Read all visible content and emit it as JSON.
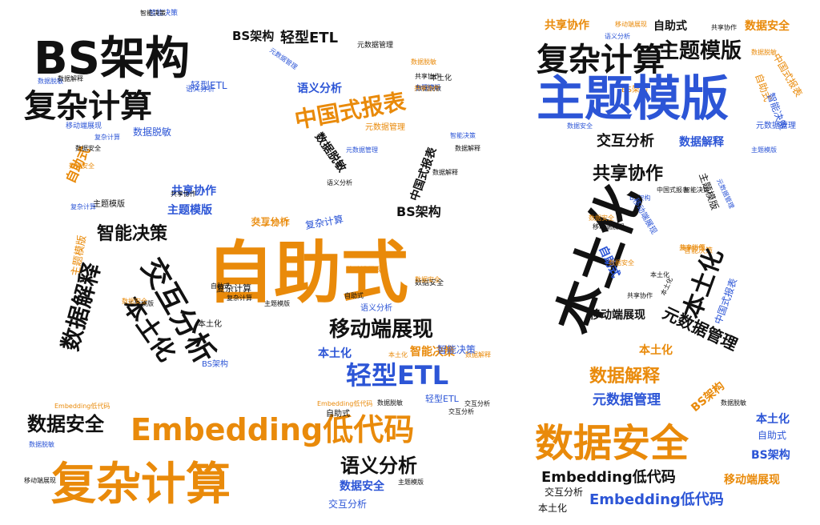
{
  "palette": {
    "black": "#111111",
    "orange": "#e98a0a",
    "blue": "#2c55d6"
  },
  "words": [
    {
      "text": "BS架构",
      "color": "black"
    },
    {
      "text": "复杂计算",
      "color": "black"
    },
    {
      "text": "智能决策",
      "color": "blue"
    },
    {
      "text": "数据脱敏",
      "color": "blue"
    },
    {
      "text": "BS架构",
      "color": "black"
    },
    {
      "text": "轻型ETL",
      "color": "black"
    },
    {
      "text": "元数据管理",
      "color": "black"
    },
    {
      "text": "中国式报表",
      "color": "orange"
    },
    {
      "text": "元数据管理",
      "color": "blue"
    },
    {
      "text": "语义分析",
      "color": "blue"
    },
    {
      "text": "自助式",
      "color": "orange"
    },
    {
      "text": "共享协作",
      "color": "blue"
    },
    {
      "text": "主题模版",
      "color": "blue"
    },
    {
      "text": "智能决策",
      "color": "black"
    },
    {
      "text": "主题模版",
      "color": "orange"
    },
    {
      "text": "交互分析",
      "color": "black"
    },
    {
      "text": "数据解释",
      "color": "black"
    },
    {
      "text": "本土化",
      "color": "black"
    },
    {
      "text": "自助式",
      "color": "orange"
    },
    {
      "text": "移动端展现",
      "color": "black"
    },
    {
      "text": "轻型ETL",
      "color": "blue"
    },
    {
      "text": "Embedding低代码",
      "color": "orange"
    },
    {
      "text": "数据安全",
      "color": "black"
    },
    {
      "text": "复杂计算",
      "color": "orange"
    },
    {
      "text": "语义分析",
      "color": "black"
    },
    {
      "text": "数据安全",
      "color": "blue"
    },
    {
      "text": "交互分析",
      "color": "blue"
    },
    {
      "text": "本土化",
      "color": "blue"
    },
    {
      "text": "智能决策",
      "color": "orange"
    },
    {
      "text": "数据解释",
      "color": "orange"
    },
    {
      "text": "复杂计算",
      "color": "black"
    },
    {
      "text": "交互分析",
      "color": "orange"
    },
    {
      "text": "复杂计算",
      "color": "blue"
    },
    {
      "text": "BS架构",
      "color": "black"
    },
    {
      "text": "数据安全",
      "color": "black"
    },
    {
      "text": "自助式",
      "color": "black"
    },
    {
      "text": "数据脱敏",
      "color": "black"
    },
    {
      "text": "轻型ETL",
      "color": "blue"
    },
    {
      "text": "交互分析",
      "color": "black"
    },
    {
      "text": "数据解释",
      "color": "black"
    },
    {
      "text": "本土化",
      "color": "black"
    },
    {
      "text": "元数据管理",
      "color": "orange"
    },
    {
      "text": "数据脱敏",
      "color": "black"
    },
    {
      "text": "智能决策",
      "color": "blue"
    },
    {
      "text": "数据解释",
      "color": "black"
    },
    {
      "text": "语义分析",
      "color": "black"
    },
    {
      "text": "中国式报表",
      "color": "black"
    },
    {
      "text": "复杂计算",
      "color": "blue"
    },
    {
      "text": "移动端展现",
      "color": "blue"
    },
    {
      "text": "语义分析",
      "color": "blue"
    },
    {
      "text": "Embedding低代码",
      "color": "orange"
    },
    {
      "text": "数据安全",
      "color": "black"
    },
    {
      "text": "元数据管理",
      "color": "blue"
    },
    {
      "text": "数据解释",
      "color": "black"
    },
    {
      "text": "智能决策",
      "color": "black"
    },
    {
      "text": "数据脱敏",
      "color": "orange"
    },
    {
      "text": "共享协作",
      "color": "black"
    },
    {
      "text": "复杂计算",
      "color": "blue"
    },
    {
      "text": "数据安全",
      "color": "orange"
    },
    {
      "text": "数据脱敏",
      "color": "black"
    },
    {
      "text": "主题模版",
      "color": "black"
    },
    {
      "text": "数据脱敏",
      "color": "blue"
    },
    {
      "text": "轻型ETL",
      "color": "blue"
    },
    {
      "text": "交互分析",
      "color": "black"
    },
    {
      "text": "数据安全",
      "color": "orange"
    },
    {
      "text": "主题模版",
      "color": "blue"
    },
    {
      "text": "移动端展现",
      "color": "black"
    },
    {
      "text": "共享协作",
      "color": "orange"
    },
    {
      "text": "移动端展现",
      "color": "orange"
    },
    {
      "text": "语义分析",
      "color": "blue"
    },
    {
      "text": "复杂计算",
      "color": "black"
    },
    {
      "text": "数据安全",
      "color": "orange"
    },
    {
      "text": "自助式",
      "color": "black"
    },
    {
      "text": "共享协作",
      "color": "black"
    },
    {
      "text": "自助式",
      "color": "black"
    },
    {
      "text": "主题模版",
      "color": "black"
    },
    {
      "text": "主题模版",
      "color": "black"
    },
    {
      "text": "BS架构",
      "color": "blue"
    },
    {
      "text": "本土化",
      "color": "black"
    },
    {
      "text": "数据脱敏",
      "color": "blue"
    },
    {
      "text": "本土化",
      "color": "orange"
    },
    {
      "text": "智能决策",
      "color": "blue"
    },
    {
      "text": "共享协作",
      "color": "orange"
    },
    {
      "text": "主题模版",
      "color": "black"
    },
    {
      "text": "共享协作",
      "color": "orange"
    },
    {
      "text": "移动端展现",
      "color": "orange"
    },
    {
      "text": "语义分析",
      "color": "blue"
    },
    {
      "text": "复杂计算",
      "color": "black"
    },
    {
      "text": "数据安全",
      "color": "orange"
    },
    {
      "text": "自助式",
      "color": "black"
    },
    {
      "text": "主题模版",
      "color": "black"
    },
    {
      "text": "共享协作",
      "color": "black"
    },
    {
      "text": "BS架构",
      "color": "orange"
    },
    {
      "text": "主题模版",
      "color": "blue"
    },
    {
      "text": "中国式报表",
      "color": "orange"
    },
    {
      "text": "交互分析",
      "color": "black"
    },
    {
      "text": "数据解释",
      "color": "blue"
    },
    {
      "text": "共享协作",
      "color": "black"
    },
    {
      "text": "主题模版",
      "color": "black"
    },
    {
      "text": "元数据管理",
      "color": "blue"
    },
    {
      "text": "中国式报表",
      "color": "black"
    },
    {
      "text": "智能决策",
      "color": "black"
    },
    {
      "text": "BS架构",
      "color": "blue"
    },
    {
      "text": "本土化",
      "color": "black"
    },
    {
      "text": "移动端展现",
      "color": "blue"
    },
    {
      "text": "数据安全",
      "color": "orange"
    },
    {
      "text": "移动端展现",
      "color": "black"
    },
    {
      "text": "数据脱敏",
      "color": "orange"
    },
    {
      "text": "智能决策",
      "color": "orange"
    },
    {
      "text": "共享协作",
      "color": "orange"
    },
    {
      "text": "自助式",
      "color": "blue"
    },
    {
      "text": "本土化",
      "color": "black"
    },
    {
      "text": "共享协作",
      "color": "black"
    },
    {
      "text": "中国式报表",
      "color": "blue"
    },
    {
      "text": "本土化",
      "color": "black"
    },
    {
      "text": "元数据管理",
      "color": "black"
    },
    {
      "text": "移动端展现",
      "color": "black"
    },
    {
      "text": "数据安全",
      "color": "blue"
    },
    {
      "text": "本土化",
      "color": "orange"
    },
    {
      "text": "数据解释",
      "color": "orange"
    },
    {
      "text": "BS架构",
      "color": "orange"
    },
    {
      "text": "元数据管理",
      "color": "blue"
    },
    {
      "text": "数据脱敏",
      "color": "black"
    },
    {
      "text": "本土化",
      "color": "blue"
    },
    {
      "text": "数据安全",
      "color": "orange"
    },
    {
      "text": "自助式",
      "color": "blue"
    },
    {
      "text": "BS架构",
      "color": "blue"
    },
    {
      "text": "Embedding低代码",
      "color": "black"
    },
    {
      "text": "移动端展现",
      "color": "orange"
    },
    {
      "text": "交互分析",
      "color": "black"
    },
    {
      "text": "Embedding低代码",
      "color": "blue"
    },
    {
      "text": "本土化",
      "color": "black"
    },
    {
      "text": "自助式",
      "color": "orange"
    },
    {
      "text": "智能决策",
      "color": "blue"
    },
    {
      "text": "元数据管理",
      "color": "blue"
    },
    {
      "text": "主题模版",
      "color": "blue"
    },
    {
      "text": "本土化",
      "color": "black"
    },
    {
      "text": "复杂计算",
      "color": "orange"
    },
    {
      "text": "数据安全",
      "color": "orange"
    },
    {
      "text": "Embedding低代码",
      "color": "orange"
    }
  ]
}
